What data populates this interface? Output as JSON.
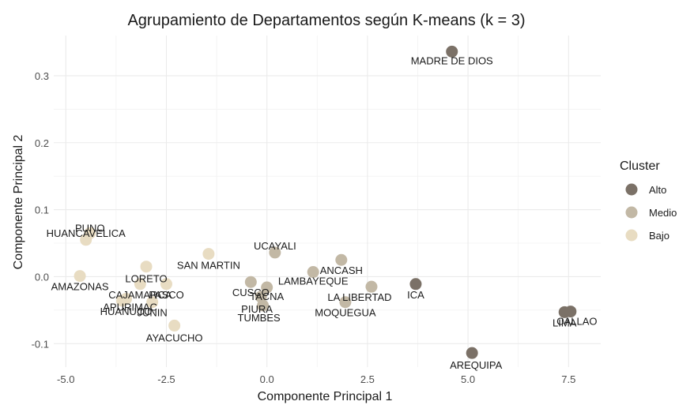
{
  "chart_data": {
    "type": "scatter",
    "title": "Agrupamiento de Departamentos según K-means (k = 3)",
    "xlabel": "Componente Principal 1",
    "ylabel": "Componente Principal 2",
    "xlim": [
      -5.3,
      8.3
    ],
    "ylim": [
      -0.135,
      0.36
    ],
    "xticks": [
      -5.0,
      -2.5,
      0.0,
      2.5,
      5.0,
      7.5
    ],
    "xtick_labels": [
      "-5.0",
      "-2.5",
      "0.0",
      "2.5",
      "5.0",
      "7.5"
    ],
    "yticks": [
      -0.1,
      0.0,
      0.1,
      0.2,
      0.3
    ],
    "ytick_labels": [
      "-0.1",
      "0.0",
      "0.1",
      "0.2",
      "0.3"
    ],
    "grid": true,
    "legend": {
      "title": "Cluster",
      "position": "right",
      "entries": [
        {
          "name": "Alto",
          "color": "#7b7167"
        },
        {
          "name": "Medio",
          "color": "#c2b8a5"
        },
        {
          "name": "Bajo",
          "color": "#e8dcc2"
        }
      ]
    },
    "points": [
      {
        "label": "MADRE DE DIOS",
        "x": 4.6,
        "y": 0.336,
        "cluster": "Alto"
      },
      {
        "label": "ICA",
        "x": 3.7,
        "y": -0.011,
        "cluster": "Alto"
      },
      {
        "label": "AREQUIPA",
        "x": 5.1,
        "y": -0.114,
        "cluster": "Alto"
      },
      {
        "label": "LIMA",
        "x": 7.4,
        "y": -0.053,
        "cluster": "Alto"
      },
      {
        "label": "CALLAO",
        "x": 7.55,
        "y": -0.052,
        "cluster": "Alto"
      },
      {
        "label": "UCAYALI",
        "x": 0.2,
        "y": 0.036,
        "cluster": "Medio"
      },
      {
        "label": "ANCASH",
        "x": 1.85,
        "y": 0.025,
        "cluster": "Medio"
      },
      {
        "label": "LAMBAYEQUE",
        "x": 1.15,
        "y": 0.007,
        "cluster": "Medio"
      },
      {
        "label": "CUSCO",
        "x": -0.4,
        "y": -0.008,
        "cluster": "Medio"
      },
      {
        "label": "TACNA",
        "x": 0.0,
        "y": -0.016,
        "cluster": "Medio"
      },
      {
        "label": "PIURA",
        "x": -0.15,
        "y": -0.03,
        "cluster": "Medio"
      },
      {
        "label": "TUMBES",
        "x": -0.1,
        "y": -0.043,
        "cluster": "Medio"
      },
      {
        "label": "LA LIBERTAD",
        "x": 2.6,
        "y": -0.015,
        "cluster": "Medio"
      },
      {
        "label": "MOQUEGUA",
        "x": 1.95,
        "y": -0.038,
        "cluster": "Medio"
      },
      {
        "label": "PUNO",
        "x": -4.4,
        "y": 0.065,
        "cluster": "Bajo"
      },
      {
        "label": "HUANCAVELICA",
        "x": -4.5,
        "y": 0.055,
        "cluster": "Bajo"
      },
      {
        "label": "SAN MARTIN",
        "x": -1.45,
        "y": 0.034,
        "cluster": "Bajo"
      },
      {
        "label": "LORETO",
        "x": -3.0,
        "y": 0.015,
        "cluster": "Bajo"
      },
      {
        "label": "AMAZONAS",
        "x": -4.65,
        "y": 0.001,
        "cluster": "Bajo"
      },
      {
        "label": "CAJAMARCA",
        "x": -3.15,
        "y": -0.011,
        "cluster": "Bajo"
      },
      {
        "label": "PASCO",
        "x": -2.5,
        "y": -0.011,
        "cluster": "Bajo"
      },
      {
        "label": "APURIMAC",
        "x": -3.5,
        "y": -0.033,
        "cluster": "Bajo"
      },
      {
        "label": "HUANUCO",
        "x": -3.6,
        "y": -0.036,
        "cluster": "Bajo"
      },
      {
        "label": "JUNIN",
        "x": -2.85,
        "y": -0.038,
        "cluster": "Bajo"
      },
      {
        "label": "AYACUCHO",
        "x": -2.3,
        "y": -0.073,
        "cluster": "Bajo"
      }
    ]
  }
}
